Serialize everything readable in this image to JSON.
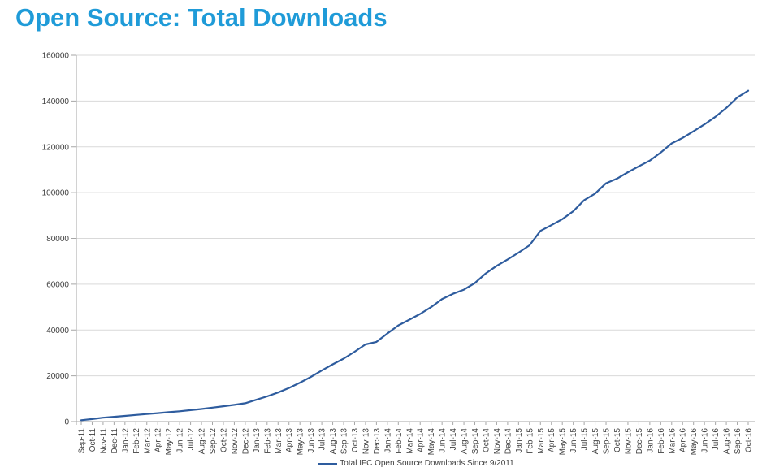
{
  "title": "Open Source: Total Downloads",
  "colors": {
    "title_blue": "#1F9BD8",
    "series_line": "#2E5C9E",
    "gridline": "#D9D9D9",
    "axis_line": "#A6A6A6",
    "tick_label": "#404040"
  },
  "chart_data": {
    "type": "line",
    "title": "",
    "xlabel": "",
    "ylabel": "",
    "ylim": [
      0,
      160000
    ],
    "grid": true,
    "legend": "Total IFC Open Source Downloads Since 9/2011",
    "legend_position": "bottom-center",
    "yticks": [
      0,
      20000,
      40000,
      60000,
      80000,
      100000,
      120000,
      140000,
      160000
    ],
    "categories": [
      "Sep-11",
      "Oct-11",
      "Nov-11",
      "Dec-11",
      "Jan-12",
      "Feb-12",
      "Mar-12",
      "Apr-12",
      "May-12",
      "Jun-12",
      "Jul-12",
      "Aug-12",
      "Sep-12",
      "Oct-12",
      "Nov-12",
      "Dec-12",
      "Jan-13",
      "Feb-13",
      "Mar-13",
      "Apr-13",
      "May-13",
      "Jun-13",
      "Jul-13",
      "Aug-13",
      "Sep-13",
      "Oct-13",
      "Nov-13",
      "Dec-13",
      "Jan-14",
      "Feb-14",
      "Mar-14",
      "Apr-14",
      "May-14",
      "Jun-14",
      "Jul-14",
      "Aug-14",
      "Sep-14",
      "Oct-14",
      "Nov-14",
      "Dec-14",
      "Jan-15",
      "Feb-15",
      "Mar-15",
      "Apr-15",
      "May-15",
      "Jun-15",
      "Jul-15",
      "Aug-15",
      "Sep-15",
      "Oct-15",
      "Nov-15",
      "Dec-15",
      "Jan-16",
      "Feb-16",
      "Mar-16",
      "Apr-16",
      "May-16",
      "Jun-16",
      "Jul-16",
      "Aug-16",
      "Sep-16",
      "Oct-16"
    ],
    "series": [
      {
        "name": "Total IFC Open Source Downloads Since 9/2011",
        "values": [
          600,
          1100,
          1700,
          2100,
          2500,
          2900,
          3300,
          3700,
          4100,
          4500,
          5000,
          5500,
          6100,
          6700,
          7300,
          8000,
          9500,
          11000,
          12700,
          14700,
          17000,
          19500,
          22300,
          25000,
          27500,
          30500,
          33700,
          34800,
          38500,
          42000,
          44500,
          47000,
          50000,
          53500,
          55800,
          57600,
          60500,
          64700,
          68000,
          70800,
          73800,
          77000,
          83300,
          85800,
          88400,
          91900,
          96700,
          99600,
          104100,
          106100,
          108900,
          111500,
          114000,
          117500,
          121500,
          123900,
          126800,
          129800,
          133100,
          137000,
          141500,
          144500
        ]
      }
    ]
  }
}
